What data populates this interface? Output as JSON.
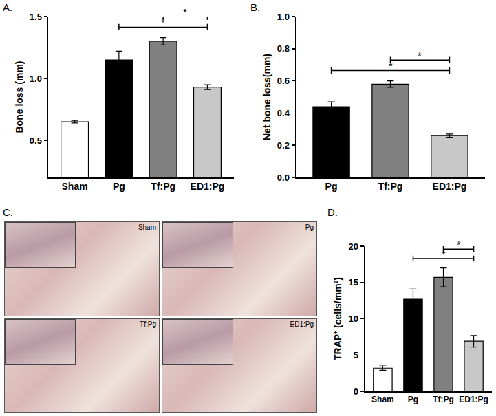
{
  "chart_data": [
    {
      "panel_label": "A.",
      "type": "bar",
      "categories": [
        "Sham",
        "Pg",
        "Tf:Pg",
        "ED1:Pg"
      ],
      "values": [
        0.65,
        1.15,
        1.3,
        0.93
      ],
      "errors": [
        0.01,
        0.07,
        0.03,
        0.02
      ],
      "colors": [
        "#ffffff",
        "#000000",
        "#808080",
        "#c8c8c8"
      ],
      "y_label": "Bone loss (mm)",
      "ylim": [
        0.2,
        1.5
      ],
      "yticks": [
        0.5,
        {
          "value": 1.0,
          "label": "1.0"
        },
        1.5
      ],
      "comparisons": [
        {
          "from": "Pg",
          "to": "ED1:Pg",
          "label": "*"
        },
        {
          "from": "Tf:Pg",
          "to": "ED1:Pg",
          "label": "*"
        }
      ]
    },
    {
      "panel_label": "B.",
      "type": "bar",
      "categories": [
        "Pg",
        "Tf:Pg",
        "ED1:Pg"
      ],
      "values": [
        0.44,
        0.58,
        0.26
      ],
      "errors": [
        0.03,
        0.02,
        0.01
      ],
      "colors": [
        "#000000",
        "#808080",
        "#c8c8c8"
      ],
      "y_label": "Net bone loss(mm)",
      "ylim": [
        0,
        1.0
      ],
      "yticks": [
        {
          "value": 0,
          "label": "0.0"
        },
        0.2,
        0.4,
        0.6,
        0.8,
        {
          "value": 1.0,
          "label": "1.0"
        }
      ],
      "comparisons": [
        {
          "from": "Pg",
          "to": "ED1:Pg",
          "label": "*"
        },
        {
          "from": "Tf:Pg",
          "to": "ED1:Pg",
          "label": "*"
        }
      ]
    },
    {
      "panel_label": "D.",
      "type": "bar",
      "categories": [
        "Sham",
        "Pg",
        "Tf:Pg",
        "ED1:Pg"
      ],
      "values": [
        3.2,
        12.7,
        15.7,
        6.9
      ],
      "errors": [
        0.3,
        1.4,
        1.3,
        0.8
      ],
      "colors": [
        "#ffffff",
        "#000000",
        "#808080",
        "#c8c8c8"
      ],
      "y_label": "TRAP⁺ (cells/mm²)",
      "ylim": [
        0,
        20
      ],
      "yticks": [
        0,
        5,
        10,
        15,
        20
      ],
      "comparisons": [
        {
          "from": "Pg",
          "to": "ED1:Pg",
          "label": "*"
        },
        {
          "from": "Tf:Pg",
          "to": "ED1:Pg",
          "label": "*"
        }
      ]
    }
  ],
  "image_panel": {
    "panel_label": "C.",
    "images": [
      "Sham",
      "Pg",
      "Tf:Pg",
      "ED1:Pg"
    ]
  }
}
